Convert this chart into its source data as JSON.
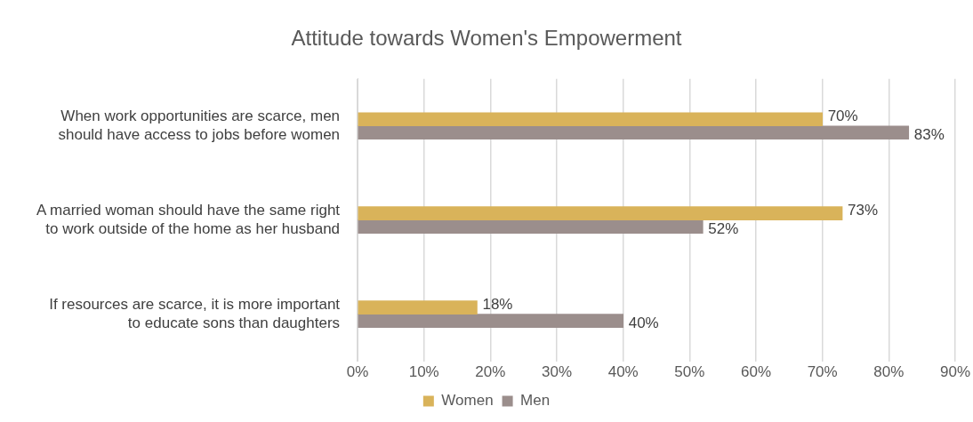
{
  "chart_data": {
    "type": "bar",
    "orientation": "horizontal",
    "title": "Attitude towards Women's Empowerment",
    "categories": [
      "When work opportunities are scarce, men should have access to jobs before women",
      "A married woman should have the same right to work outside of the home as her husband",
      "If resources are scarce, it is more important to educate sons than daughters"
    ],
    "series": [
      {
        "name": "Women",
        "color": "#d9b35a",
        "values": [
          70,
          73,
          18
        ],
        "value_labels": [
          "70%",
          "73%",
          "18%"
        ]
      },
      {
        "name": "Men",
        "color": "#9b8e8c",
        "values": [
          83,
          52,
          40
        ],
        "value_labels": [
          "83%",
          "52%",
          "40%"
        ]
      }
    ],
    "xlim": [
      0,
      90
    ],
    "xticks": [
      {
        "value": 0,
        "label": "0%"
      },
      {
        "value": 10,
        "label": "10%"
      },
      {
        "value": 20,
        "label": "20%"
      },
      {
        "value": 30,
        "label": "30%"
      },
      {
        "value": 40,
        "label": "40%"
      },
      {
        "value": 50,
        "label": "50%"
      },
      {
        "value": 60,
        "label": "60%"
      },
      {
        "value": 70,
        "label": "70%"
      },
      {
        "value": 80,
        "label": "80%"
      },
      {
        "value": 90,
        "label": "90%"
      }
    ],
    "grid": "x",
    "legend": "bottom"
  }
}
